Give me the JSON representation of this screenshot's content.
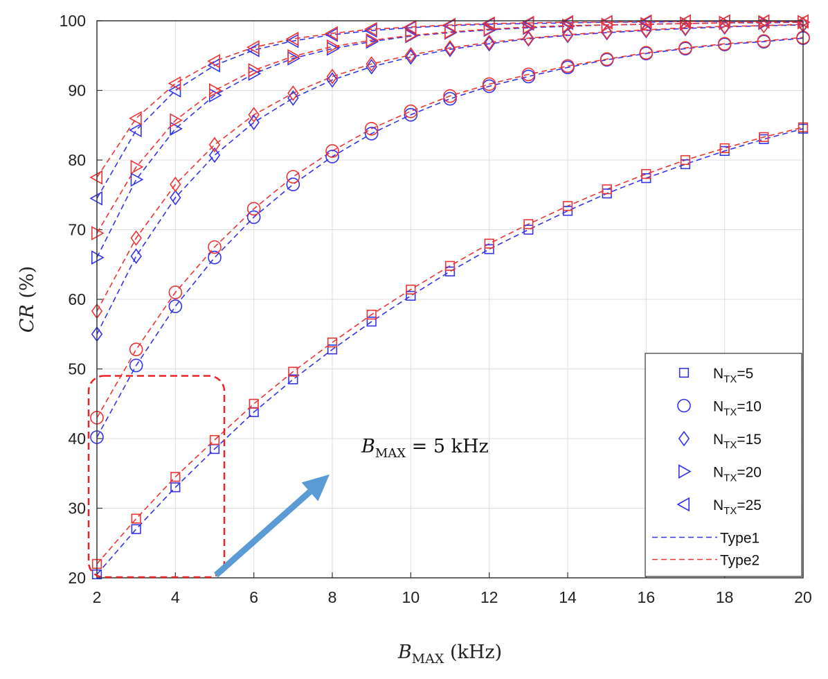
{
  "chart_data": {
    "type": "line",
    "title": "",
    "xlabel": "B_MAX (kHz)",
    "xlabel_main": "B",
    "xlabel_sub": "MAX",
    "xlabel_unit": " (kHz)",
    "ylabel": "CR (%)",
    "ylabel_main": "CR",
    "ylabel_unit": " (%)",
    "xlim": [
      2,
      20
    ],
    "ylim": [
      20,
      100
    ],
    "xticks": [
      2,
      4,
      6,
      8,
      10,
      12,
      14,
      16,
      18,
      20
    ],
    "yticks": [
      20,
      30,
      40,
      50,
      60,
      70,
      80,
      90,
      100
    ],
    "grid": true,
    "legend_position": "bottom-right",
    "x": [
      2,
      3,
      4,
      5,
      6,
      7,
      8,
      9,
      10,
      11,
      12,
      13,
      14,
      15,
      16,
      17,
      18,
      19,
      20
    ],
    "series": [
      {
        "name": "N_TX=5",
        "nt": "5",
        "marker": "square",
        "type": "Type1",
        "values": [
          20.5,
          27.0,
          33.0,
          38.5,
          43.8,
          48.5,
          52.8,
          56.8,
          60.5,
          64.0,
          67.2,
          70.0,
          72.7,
          75.2,
          77.4,
          79.4,
          81.3,
          83.0,
          84.5
        ]
      },
      {
        "name": "N_TX=5",
        "nt": "5",
        "marker": "square",
        "type": "Type2",
        "values": [
          22.0,
          28.5,
          34.5,
          39.8,
          45.0,
          49.6,
          53.8,
          57.8,
          61.4,
          64.8,
          68.0,
          70.8,
          73.4,
          75.8,
          78.0,
          80.0,
          81.7,
          83.3,
          84.7
        ]
      },
      {
        "name": "N_TX=10",
        "nt": "10",
        "marker": "circle",
        "type": "Type1",
        "values": [
          40.2,
          50.5,
          59.0,
          66.0,
          71.8,
          76.5,
          80.5,
          83.8,
          86.5,
          88.8,
          90.6,
          92.0,
          93.3,
          94.4,
          95.3,
          96.0,
          96.6,
          97.0,
          97.5
        ]
      },
      {
        "name": "N_TX=10",
        "nt": "10",
        "marker": "circle",
        "type": "Type2",
        "values": [
          43.0,
          52.8,
          61.0,
          67.5,
          73.0,
          77.6,
          81.3,
          84.5,
          87.0,
          89.2,
          90.9,
          92.3,
          93.5,
          94.5,
          95.4,
          96.1,
          96.7,
          97.1,
          97.6
        ]
      },
      {
        "name": "N_TX=15",
        "nt": "15",
        "marker": "diamond",
        "type": "Type1",
        "values": [
          55.0,
          66.2,
          74.6,
          80.7,
          85.4,
          88.9,
          91.5,
          93.4,
          94.8,
          95.9,
          96.7,
          97.4,
          97.9,
          98.3,
          98.6,
          98.9,
          99.1,
          99.3,
          99.4
        ]
      },
      {
        "name": "N_TX=15",
        "nt": "15",
        "marker": "diamond",
        "type": "Type2",
        "values": [
          58.3,
          68.8,
          76.5,
          82.2,
          86.5,
          89.6,
          92.0,
          93.8,
          95.1,
          96.1,
          96.9,
          97.5,
          98.0,
          98.4,
          98.7,
          99.0,
          99.2,
          99.3,
          99.5
        ]
      },
      {
        "name": "N_TX=20",
        "nt": "20",
        "marker": "triangle-right",
        "type": "Type1",
        "values": [
          66.0,
          77.2,
          84.5,
          89.3,
          92.4,
          94.6,
          96.0,
          97.0,
          97.8,
          98.3,
          98.7,
          99.0,
          99.2,
          99.4,
          99.5,
          99.6,
          99.7,
          99.7,
          99.8
        ]
      },
      {
        "name": "N_TX=20",
        "nt": "20",
        "marker": "triangle-right",
        "type": "Type2",
        "values": [
          69.5,
          79.0,
          85.7,
          90.0,
          92.9,
          94.9,
          96.3,
          97.2,
          97.9,
          98.4,
          98.8,
          99.1,
          99.3,
          99.4,
          99.5,
          99.6,
          99.7,
          99.8,
          99.8
        ]
      },
      {
        "name": "N_TX=25",
        "nt": "25",
        "marker": "triangle-left",
        "type": "Type1",
        "values": [
          74.5,
          84.3,
          90.0,
          93.6,
          95.8,
          97.1,
          98.0,
          98.6,
          99.0,
          99.3,
          99.5,
          99.6,
          99.7,
          99.8,
          99.8,
          99.9,
          99.9,
          99.9,
          99.9
        ]
      },
      {
        "name": "N_TX=25",
        "nt": "25",
        "marker": "triangle-left",
        "type": "Type2",
        "values": [
          77.5,
          86.0,
          91.0,
          94.2,
          96.2,
          97.4,
          98.2,
          98.8,
          99.1,
          99.4,
          99.6,
          99.7,
          99.8,
          99.8,
          99.9,
          99.9,
          99.9,
          99.9,
          99.9
        ]
      }
    ],
    "legend": {
      "entries": [
        {
          "label": "N_TX=5",
          "prefix": "N",
          "sub": "TX",
          "suffix": "=5",
          "marker": "square"
        },
        {
          "label": "N_TX=10",
          "prefix": "N",
          "sub": "TX",
          "suffix": "=10",
          "marker": "circle"
        },
        {
          "label": "N_TX=15",
          "prefix": "N",
          "sub": "TX",
          "suffix": "=15",
          "marker": "diamond"
        },
        {
          "label": "N_TX=20",
          "prefix": "N",
          "sub": "TX",
          "suffix": "=20",
          "marker": "triangle-right"
        },
        {
          "label": "N_TX=25",
          "prefix": "N",
          "sub": "TX",
          "suffix": "=25",
          "marker": "triangle-left"
        }
      ],
      "lines": [
        {
          "label": "Type1",
          "color": "#3333ee"
        },
        {
          "label": "Type2",
          "color": "#ee3333"
        }
      ]
    },
    "annotation": {
      "text": "B_MAX = 5 kHz",
      "main": "B",
      "sub": "MAX",
      "rest": " = 5 kHz",
      "box_x_range": [
        2,
        5
      ],
      "box_y_range": [
        20,
        49
      ]
    },
    "colors": {
      "type1": "#3333ee",
      "type2": "#ee3333",
      "box": "#ee2222",
      "arrow": "#5b9bd5",
      "grid": "#dddddd"
    }
  }
}
